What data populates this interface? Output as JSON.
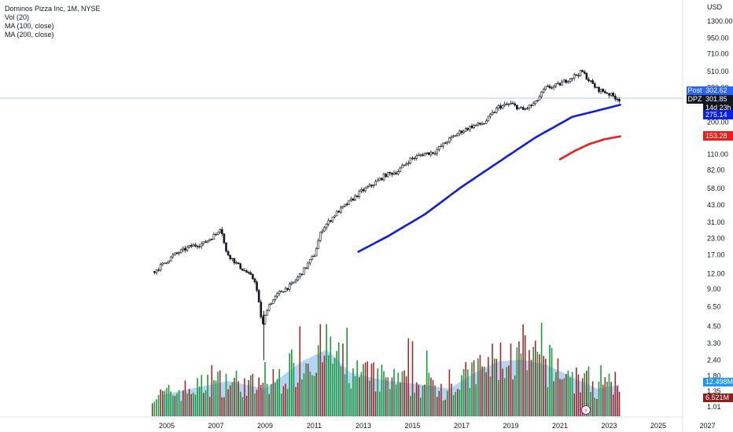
{
  "legend": {
    "title": "Dominos Pizza Inc, 1M, NYSE",
    "vol": "Vol (20)",
    "ma100": "MA (100, close)",
    "ma200": "MA (200, close)"
  },
  "currency": "USD",
  "chart_data": {
    "type": "candlestick",
    "scale": "log",
    "x_ticks": [
      "2005",
      "2007",
      "2009",
      "2011",
      "2013",
      "2015",
      "2017",
      "2019",
      "2021",
      "2023",
      "2025",
      "2027"
    ],
    "y_ticks": [
      "1300.00",
      "950.00",
      "710.00",
      "510.00",
      "380.00",
      "280.00",
      "200.00",
      "150.00",
      "110.00",
      "82.00",
      "58.00",
      "43.00",
      "31.00",
      "23.00",
      "17.00",
      "12.00",
      "9.00",
      "6.50",
      "4.50",
      "3.30",
      "2.40",
      "1.80",
      "1.35",
      "1.01"
    ],
    "price_path": [
      [
        2004.5,
        12.5
      ],
      [
        2005.3,
        17
      ],
      [
        2006.0,
        20
      ],
      [
        2006.5,
        21
      ],
      [
        2007.0,
        25
      ],
      [
        2007.2,
        29
      ],
      [
        2007.4,
        18
      ],
      [
        2007.9,
        14
      ],
      [
        2008.3,
        12
      ],
      [
        2008.6,
        10.5
      ],
      [
        2008.9,
        4.5
      ],
      [
        2009.1,
        6.5
      ],
      [
        2009.6,
        8.5
      ],
      [
        2010.1,
        9.8
      ],
      [
        2010.6,
        13
      ],
      [
        2011.0,
        17
      ],
      [
        2011.3,
        27
      ],
      [
        2011.9,
        37
      ],
      [
        2012.3,
        43
      ],
      [
        2012.9,
        55
      ],
      [
        2013.4,
        63
      ],
      [
        2013.9,
        75
      ],
      [
        2014.4,
        80
      ],
      [
        2014.9,
        100
      ],
      [
        2015.4,
        110
      ],
      [
        2015.9,
        115
      ],
      [
        2016.4,
        140
      ],
      [
        2016.9,
        165
      ],
      [
        2017.4,
        185
      ],
      [
        2017.9,
        195
      ],
      [
        2018.5,
        265
      ],
      [
        2019.0,
        280
      ],
      [
        2019.5,
        250
      ],
      [
        2020.0,
        285
      ],
      [
        2020.4,
        375
      ],
      [
        2020.9,
        395
      ],
      [
        2021.4,
        450
      ],
      [
        2021.9,
        510
      ],
      [
        2022.2,
        430
      ],
      [
        2022.5,
        370
      ],
      [
        2022.9,
        345
      ],
      [
        2023.2,
        320
      ],
      [
        2023.45,
        302
      ]
    ],
    "series": [
      {
        "name": "MA (100, close)",
        "color": "#0b1ee6",
        "points": [
          [
            2012.8,
            18
          ],
          [
            2014,
            24
          ],
          [
            2015.5,
            36
          ],
          [
            2017,
            60
          ],
          [
            2018.5,
            95
          ],
          [
            2020,
            150
          ],
          [
            2021.5,
            220
          ],
          [
            2023.45,
            275.14
          ]
        ]
      },
      {
        "name": "MA (200, close)",
        "color": "#ee1c1c",
        "points": [
          [
            2021.0,
            100
          ],
          [
            2021.6,
            117
          ],
          [
            2022.2,
            133
          ],
          [
            2022.8,
            145
          ],
          [
            2023.45,
            153.28
          ]
        ]
      }
    ],
    "volume_ma_color": "#a7cff2",
    "volume_up_color": "#1a9a3c",
    "volume_down_color": "#a12b2b",
    "price_labels": [
      {
        "label": "Post",
        "value": "302.62",
        "color": "#2962ff"
      },
      {
        "label": "DPZ",
        "value": "301.85",
        "sub": "14d 23h",
        "color": "#131722"
      },
      {
        "value": "275.14",
        "color": "#0b1ee6"
      },
      {
        "value": "153.28",
        "color": "#ee1c1c"
      },
      {
        "value": "12.498M",
        "color": "#2196f3"
      },
      {
        "value": "6.521M",
        "color": "#8b2020"
      }
    ]
  }
}
